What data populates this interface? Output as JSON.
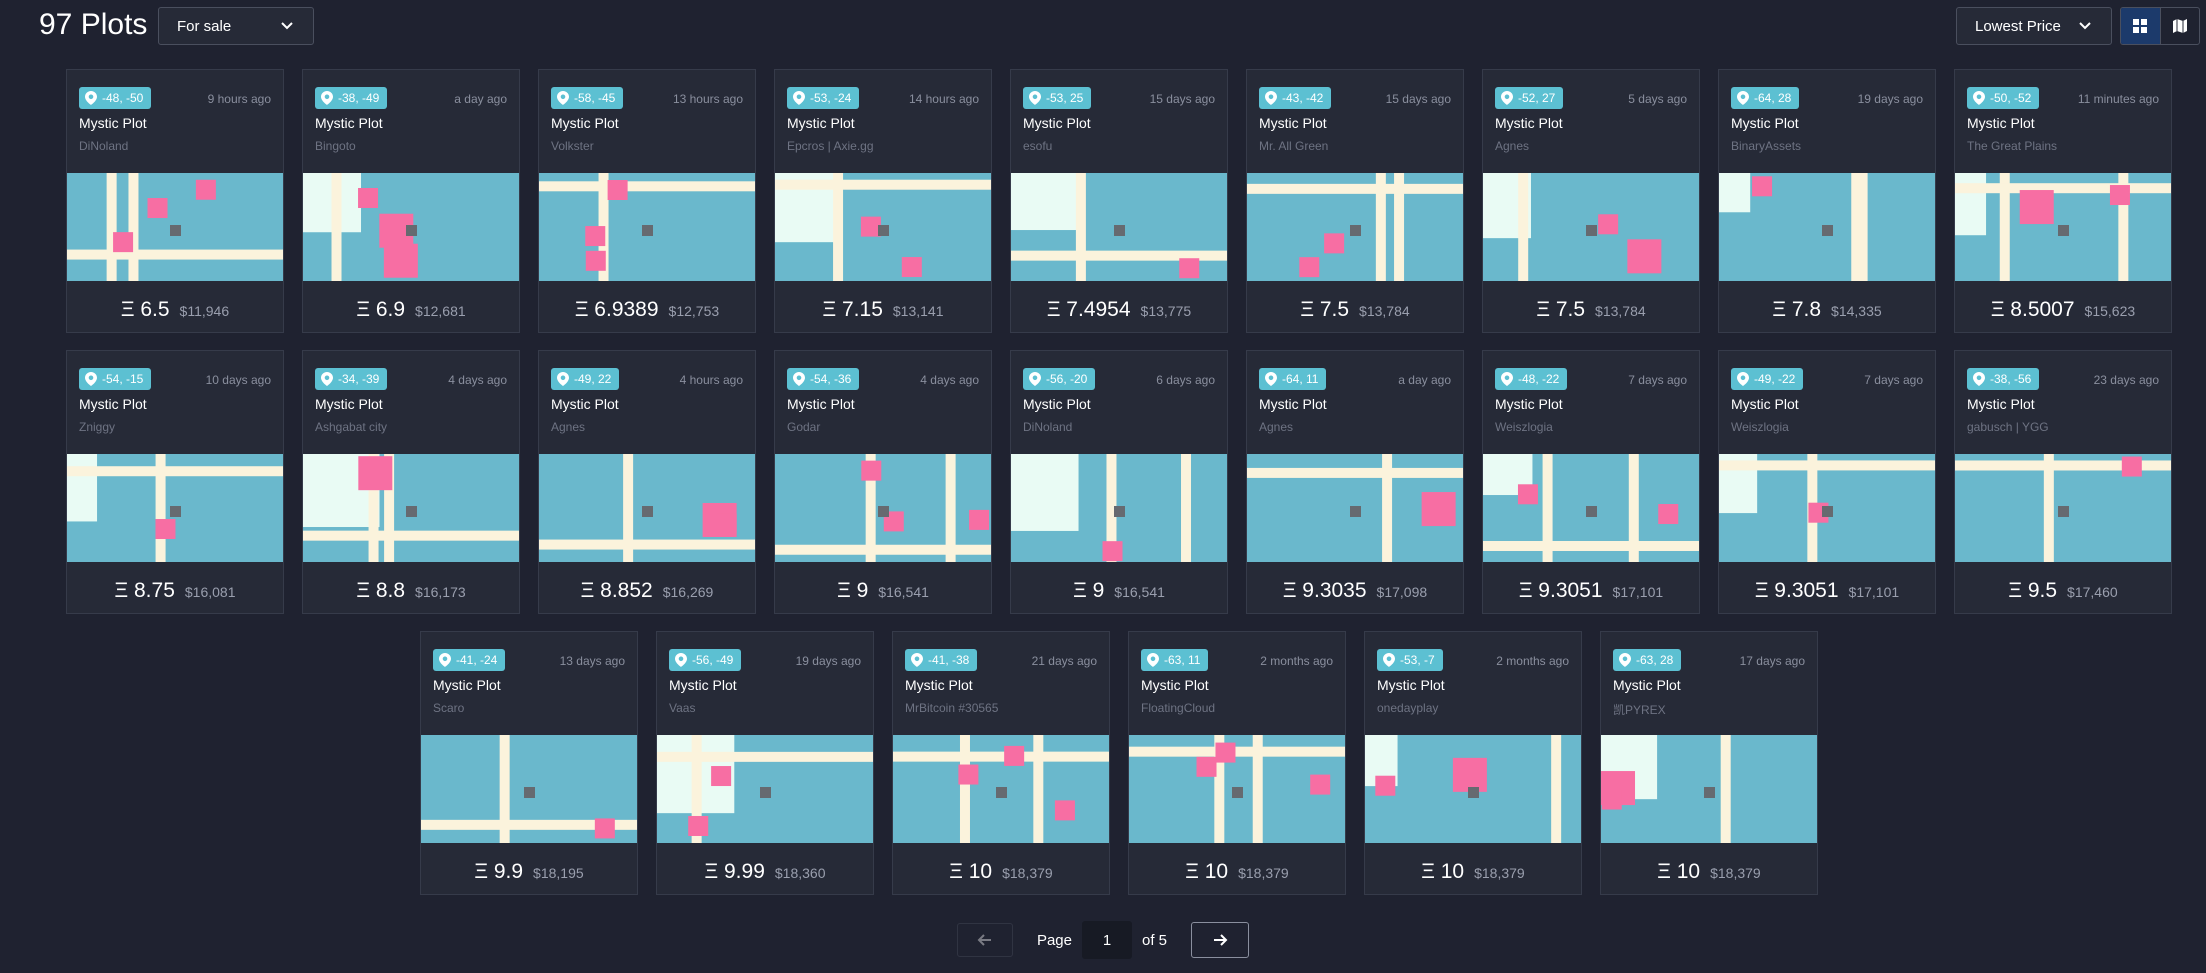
{
  "header": {
    "title": "97 Plots",
    "filter": "For sale",
    "sort": "Lowest Price"
  },
  "plots": [
    {
      "coords": "-48, -50",
      "time": "9 hours ago",
      "name": "Mystic Plot",
      "owner": "DiNoland",
      "eth": "Ξ 6.5",
      "usd": "$11,946"
    },
    {
      "coords": "-38, -49",
      "time": "a day ago",
      "name": "Mystic Plot",
      "owner": "Bingoto",
      "eth": "Ξ 6.9",
      "usd": "$12,681"
    },
    {
      "coords": "-58, -45",
      "time": "13 hours ago",
      "name": "Mystic Plot",
      "owner": "Volkster",
      "eth": "Ξ 6.9389",
      "usd": "$12,753"
    },
    {
      "coords": "-53, -24",
      "time": "14 hours ago",
      "name": "Mystic Plot",
      "owner": "Epcros | Axie.gg",
      "eth": "Ξ 7.15",
      "usd": "$13,141"
    },
    {
      "coords": "-53, 25",
      "time": "15 days ago",
      "name": "Mystic Plot",
      "owner": "esofu",
      "eth": "Ξ 7.4954",
      "usd": "$13,775"
    },
    {
      "coords": "-43, -42",
      "time": "15 days ago",
      "name": "Mystic Plot",
      "owner": "Mr. All Green",
      "eth": "Ξ 7.5",
      "usd": "$13,784"
    },
    {
      "coords": "-52, 27",
      "time": "5 days ago",
      "name": "Mystic Plot",
      "owner": "Agnes",
      "eth": "Ξ 7.5",
      "usd": "$13,784"
    },
    {
      "coords": "-64, 28",
      "time": "19 days ago",
      "name": "Mystic Plot",
      "owner": "BinaryAssets",
      "eth": "Ξ 7.8",
      "usd": "$14,335"
    },
    {
      "coords": "-50, -52",
      "time": "11 minutes ago",
      "name": "Mystic Plot",
      "owner": "The Great Plains",
      "eth": "Ξ 8.5007",
      "usd": "$15,623"
    },
    {
      "coords": "-54, -15",
      "time": "10 days ago",
      "name": "Mystic Plot",
      "owner": "Zniggy",
      "eth": "Ξ 8.75",
      "usd": "$16,081"
    },
    {
      "coords": "-34, -39",
      "time": "4 days ago",
      "name": "Mystic Plot",
      "owner": "Ashgabat city",
      "eth": "Ξ 8.8",
      "usd": "$16,173"
    },
    {
      "coords": "-49, 22",
      "time": "4 hours ago",
      "name": "Mystic Plot",
      "owner": "Agnes",
      "eth": "Ξ 8.852",
      "usd": "$16,269"
    },
    {
      "coords": "-54, -36",
      "time": "4 days ago",
      "name": "Mystic Plot",
      "owner": "Godar",
      "eth": "Ξ 9",
      "usd": "$16,541"
    },
    {
      "coords": "-56, -20",
      "time": "6 days ago",
      "name": "Mystic Plot",
      "owner": "DiNoland",
      "eth": "Ξ 9",
      "usd": "$16,541"
    },
    {
      "coords": "-64, 11",
      "time": "a day ago",
      "name": "Mystic Plot",
      "owner": "Agnes",
      "eth": "Ξ 9.3035",
      "usd": "$17,098"
    },
    {
      "coords": "-48, -22",
      "time": "7 days ago",
      "name": "Mystic Plot",
      "owner": "Weiszlogia",
      "eth": "Ξ 9.3051",
      "usd": "$17,101"
    },
    {
      "coords": "-49, -22",
      "time": "7 days ago",
      "name": "Mystic Plot",
      "owner": "Weiszlogia",
      "eth": "Ξ 9.3051",
      "usd": "$17,101"
    },
    {
      "coords": "-38, -56",
      "time": "23 days ago",
      "name": "Mystic Plot",
      "owner": "gabusch | YGG",
      "eth": "Ξ 9.5",
      "usd": "$17,460"
    },
    {
      "coords": "-41, -24",
      "time": "13 days ago",
      "name": "Mystic Plot",
      "owner": "Scaro",
      "eth": "Ξ 9.9",
      "usd": "$18,195"
    },
    {
      "coords": "-56, -49",
      "time": "19 days ago",
      "name": "Mystic Plot",
      "owner": "Vaas",
      "eth": "Ξ 9.99",
      "usd": "$18,360"
    },
    {
      "coords": "-41, -38",
      "time": "21 days ago",
      "name": "Mystic Plot",
      "owner": "MrBitcoin #30565",
      "eth": "Ξ 10",
      "usd": "$18,379"
    },
    {
      "coords": "-63, 11",
      "time": "2 months ago",
      "name": "Mystic Plot",
      "owner": "FloatingCloud",
      "eth": "Ξ 10",
      "usd": "$18,379"
    },
    {
      "coords": "-53, -7",
      "time": "2 months ago",
      "name": "Mystic Plot",
      "owner": "onedayplay",
      "eth": "Ξ 10",
      "usd": "$18,379"
    },
    {
      "coords": "-63, 28",
      "time": "17 days ago",
      "name": "Mystic Plot",
      "owner": "凯PYREX",
      "eth": "Ξ 10",
      "usd": "$18,379"
    }
  ],
  "pagination": {
    "label": "Page",
    "page": "1",
    "total": "of 5"
  }
}
